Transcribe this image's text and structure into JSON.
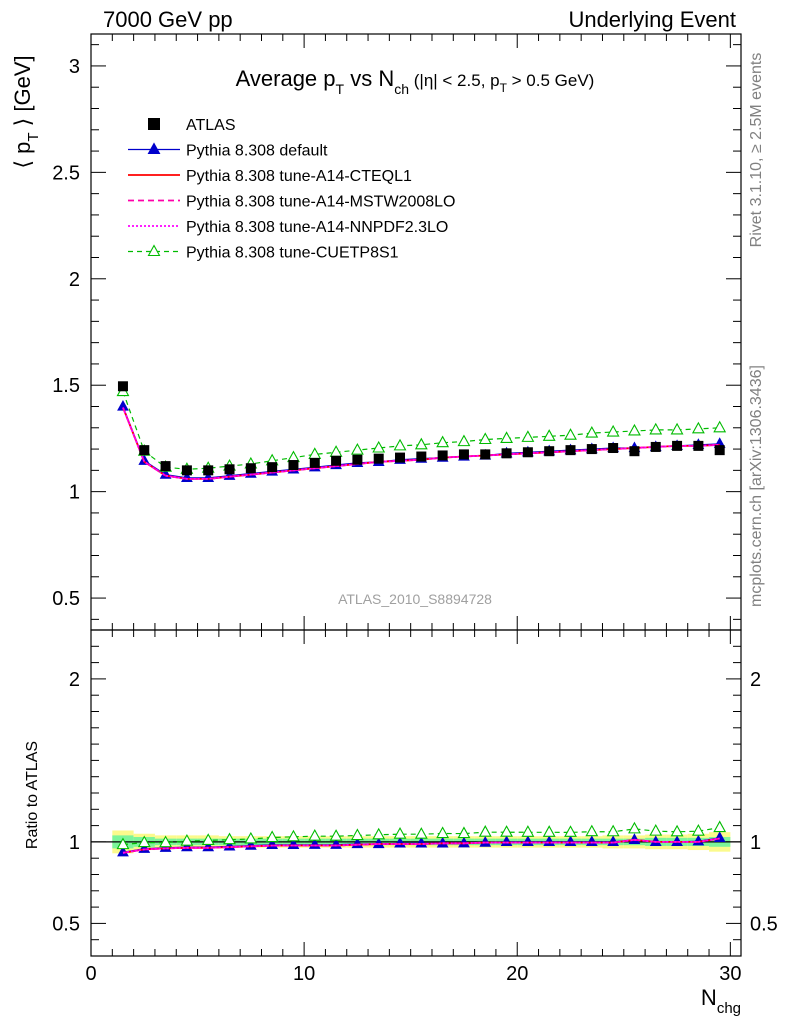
{
  "header": {
    "left": "7000 GeV pp",
    "right": "Underlying Event"
  },
  "side_labels": {
    "rivet": "Rivet 3.1.10, ≥ 2.5M events",
    "mcplots": "mcplots.cern.ch [arXiv:1306.3436]"
  },
  "chart_data": [
    {
      "type": "scatter",
      "panel": "main",
      "title": {
        "main": "Average p",
        "sub1": "T",
        "mid": " vs N",
        "sub2": "ch",
        "cond_a": " (|η| < 2.5, p",
        "cond_sub": "T",
        "cond_b": " > 0.5 GeV)"
      },
      "ylabel": {
        "open": "⟨ p",
        "sub": "T",
        "close": " ⟩ [GeV]"
      },
      "xlabel": {
        "main": "N",
        "sub": "chg"
      },
      "watermark": "ATLAS_2010_S8894728",
      "xlim": [
        0,
        30.5
      ],
      "ylim": [
        0.35,
        3.15
      ],
      "xticks": [
        "0",
        "10",
        "20",
        "30"
      ],
      "yticks": [
        "0.5",
        "1",
        "1.5",
        "2",
        "2.5",
        "3"
      ],
      "x": [
        1.5,
        2.5,
        3.5,
        4.5,
        5.5,
        6.5,
        7.5,
        8.5,
        9.5,
        10.5,
        11.5,
        12.5,
        13.5,
        14.5,
        15.5,
        16.5,
        17.5,
        18.5,
        19.5,
        20.5,
        21.5,
        22.5,
        23.5,
        24.5,
        25.5,
        26.5,
        27.5,
        28.5,
        29.5
      ],
      "series": [
        {
          "name": "ATLAS",
          "style": "data",
          "color": "#000000",
          "values": [
            1.495,
            1.195,
            1.12,
            1.1,
            1.1,
            1.105,
            1.11,
            1.115,
            1.125,
            1.135,
            1.145,
            1.15,
            1.155,
            1.16,
            1.165,
            1.17,
            1.175,
            1.175,
            1.18,
            1.185,
            1.19,
            1.195,
            1.2,
            1.205,
            1.19,
            1.21,
            1.215,
            1.215,
            1.195
          ]
        },
        {
          "name": "Pythia 8.308 default",
          "style": "default",
          "color": "#0000cc",
          "values": [
            1.4,
            1.145,
            1.08,
            1.065,
            1.065,
            1.075,
            1.085,
            1.095,
            1.105,
            1.115,
            1.125,
            1.135,
            1.14,
            1.15,
            1.155,
            1.16,
            1.165,
            1.17,
            1.18,
            1.185,
            1.19,
            1.195,
            1.2,
            1.205,
            1.205,
            1.21,
            1.215,
            1.22,
            1.225
          ]
        },
        {
          "name": "Pythia 8.308 tune-A14-CTEQL1",
          "style": "solid",
          "color": "#ff0000",
          "values": [
            1.395,
            1.14,
            1.075,
            1.06,
            1.06,
            1.07,
            1.08,
            1.09,
            1.1,
            1.11,
            1.12,
            1.13,
            1.14,
            1.145,
            1.15,
            1.16,
            1.165,
            1.17,
            1.175,
            1.18,
            1.185,
            1.19,
            1.195,
            1.2,
            1.205,
            1.21,
            1.215,
            1.215,
            1.22
          ]
        },
        {
          "name": "Pythia 8.308 tune-A14-MSTW2008LO",
          "style": "dashed",
          "color": "#ff00aa",
          "values": [
            1.395,
            1.14,
            1.075,
            1.06,
            1.06,
            1.07,
            1.08,
            1.09,
            1.1,
            1.11,
            1.12,
            1.13,
            1.14,
            1.145,
            1.15,
            1.16,
            1.165,
            1.17,
            1.175,
            1.18,
            1.185,
            1.19,
            1.195,
            1.2,
            1.205,
            1.21,
            1.215,
            1.215,
            1.22
          ]
        },
        {
          "name": "Pythia 8.308 tune-A14-NNPDF2.3LO",
          "style": "dotted",
          "color": "#ff00ff",
          "values": [
            1.395,
            1.14,
            1.075,
            1.06,
            1.06,
            1.07,
            1.08,
            1.09,
            1.1,
            1.11,
            1.12,
            1.13,
            1.14,
            1.145,
            1.15,
            1.16,
            1.165,
            1.17,
            1.175,
            1.18,
            1.185,
            1.19,
            1.195,
            1.2,
            1.205,
            1.21,
            1.215,
            1.215,
            1.22
          ]
        },
        {
          "name": "Pythia 8.308 tune-CUETP8S1",
          "style": "open-triangle",
          "color": "#00bb00",
          "values": [
            1.47,
            1.19,
            1.115,
            1.105,
            1.11,
            1.12,
            1.13,
            1.145,
            1.16,
            1.175,
            1.185,
            1.195,
            1.205,
            1.215,
            1.22,
            1.23,
            1.235,
            1.245,
            1.25,
            1.255,
            1.26,
            1.265,
            1.275,
            1.28,
            1.285,
            1.29,
            1.29,
            1.295,
            1.3
          ]
        }
      ]
    },
    {
      "type": "scatter",
      "panel": "ratio",
      "ylabel": "Ratio to ATLAS",
      "ylim": [
        0.3,
        2.3
      ],
      "yticks": [
        "0.5",
        "1",
        "2"
      ],
      "band_inner_color": "#7cf59a",
      "band_outer_color": "#fbfa8c",
      "band_inner": [
        0.04,
        0.03,
        0.02,
        0.02,
        0.02,
        0.02,
        0.02,
        0.02,
        0.02,
        0.02,
        0.02,
        0.02,
        0.02,
        0.02,
        0.02,
        0.02,
        0.02,
        0.02,
        0.02,
        0.02,
        0.02,
        0.02,
        0.02,
        0.02,
        0.02,
        0.025,
        0.025,
        0.025,
        0.03
      ],
      "band_outer": [
        0.07,
        0.05,
        0.04,
        0.04,
        0.04,
        0.035,
        0.035,
        0.035,
        0.035,
        0.035,
        0.035,
        0.035,
        0.035,
        0.035,
        0.035,
        0.035,
        0.035,
        0.035,
        0.035,
        0.035,
        0.035,
        0.035,
        0.035,
        0.04,
        0.04,
        0.045,
        0.045,
        0.05,
        0.06
      ]
    }
  ]
}
